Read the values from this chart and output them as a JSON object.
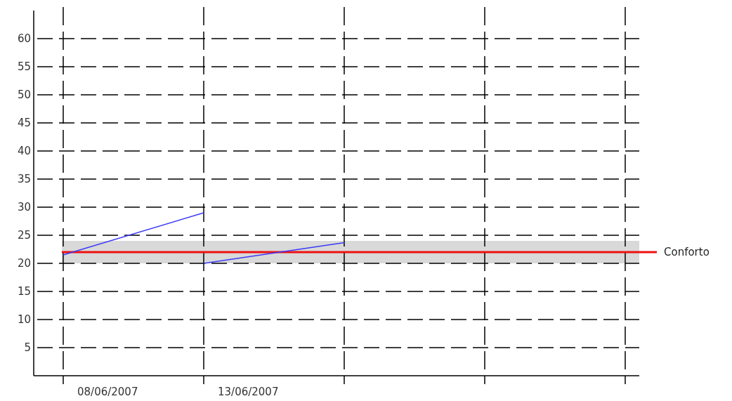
{
  "chart_data": {
    "type": "line",
    "categories": [
      "08/06/2007",
      "13/06/2007",
      null,
      null,
      null
    ],
    "ylim": [
      0,
      65
    ],
    "yticks": [
      5,
      10,
      15,
      20,
      25,
      30,
      35,
      40,
      45,
      50,
      55,
      60
    ],
    "grid": true,
    "line_style": "solid",
    "marker": "none",
    "series": [
      {
        "color": "#3b3bf5",
        "values": [
          21.5,
          29,
          null,
          null,
          null
        ]
      },
      {
        "color": "#3b3bf5",
        "values": [
          null,
          20,
          23.7,
          null,
          null
        ]
      }
    ],
    "bands": [
      {
        "axis": "y",
        "from": 20,
        "to": 24,
        "label": null,
        "color": "#d9d9d9"
      }
    ],
    "ref_lines": [
      {
        "axis": "y",
        "value": 22,
        "label": "Conforto",
        "color": "#ee1111",
        "line_style": "solid"
      }
    ]
  }
}
